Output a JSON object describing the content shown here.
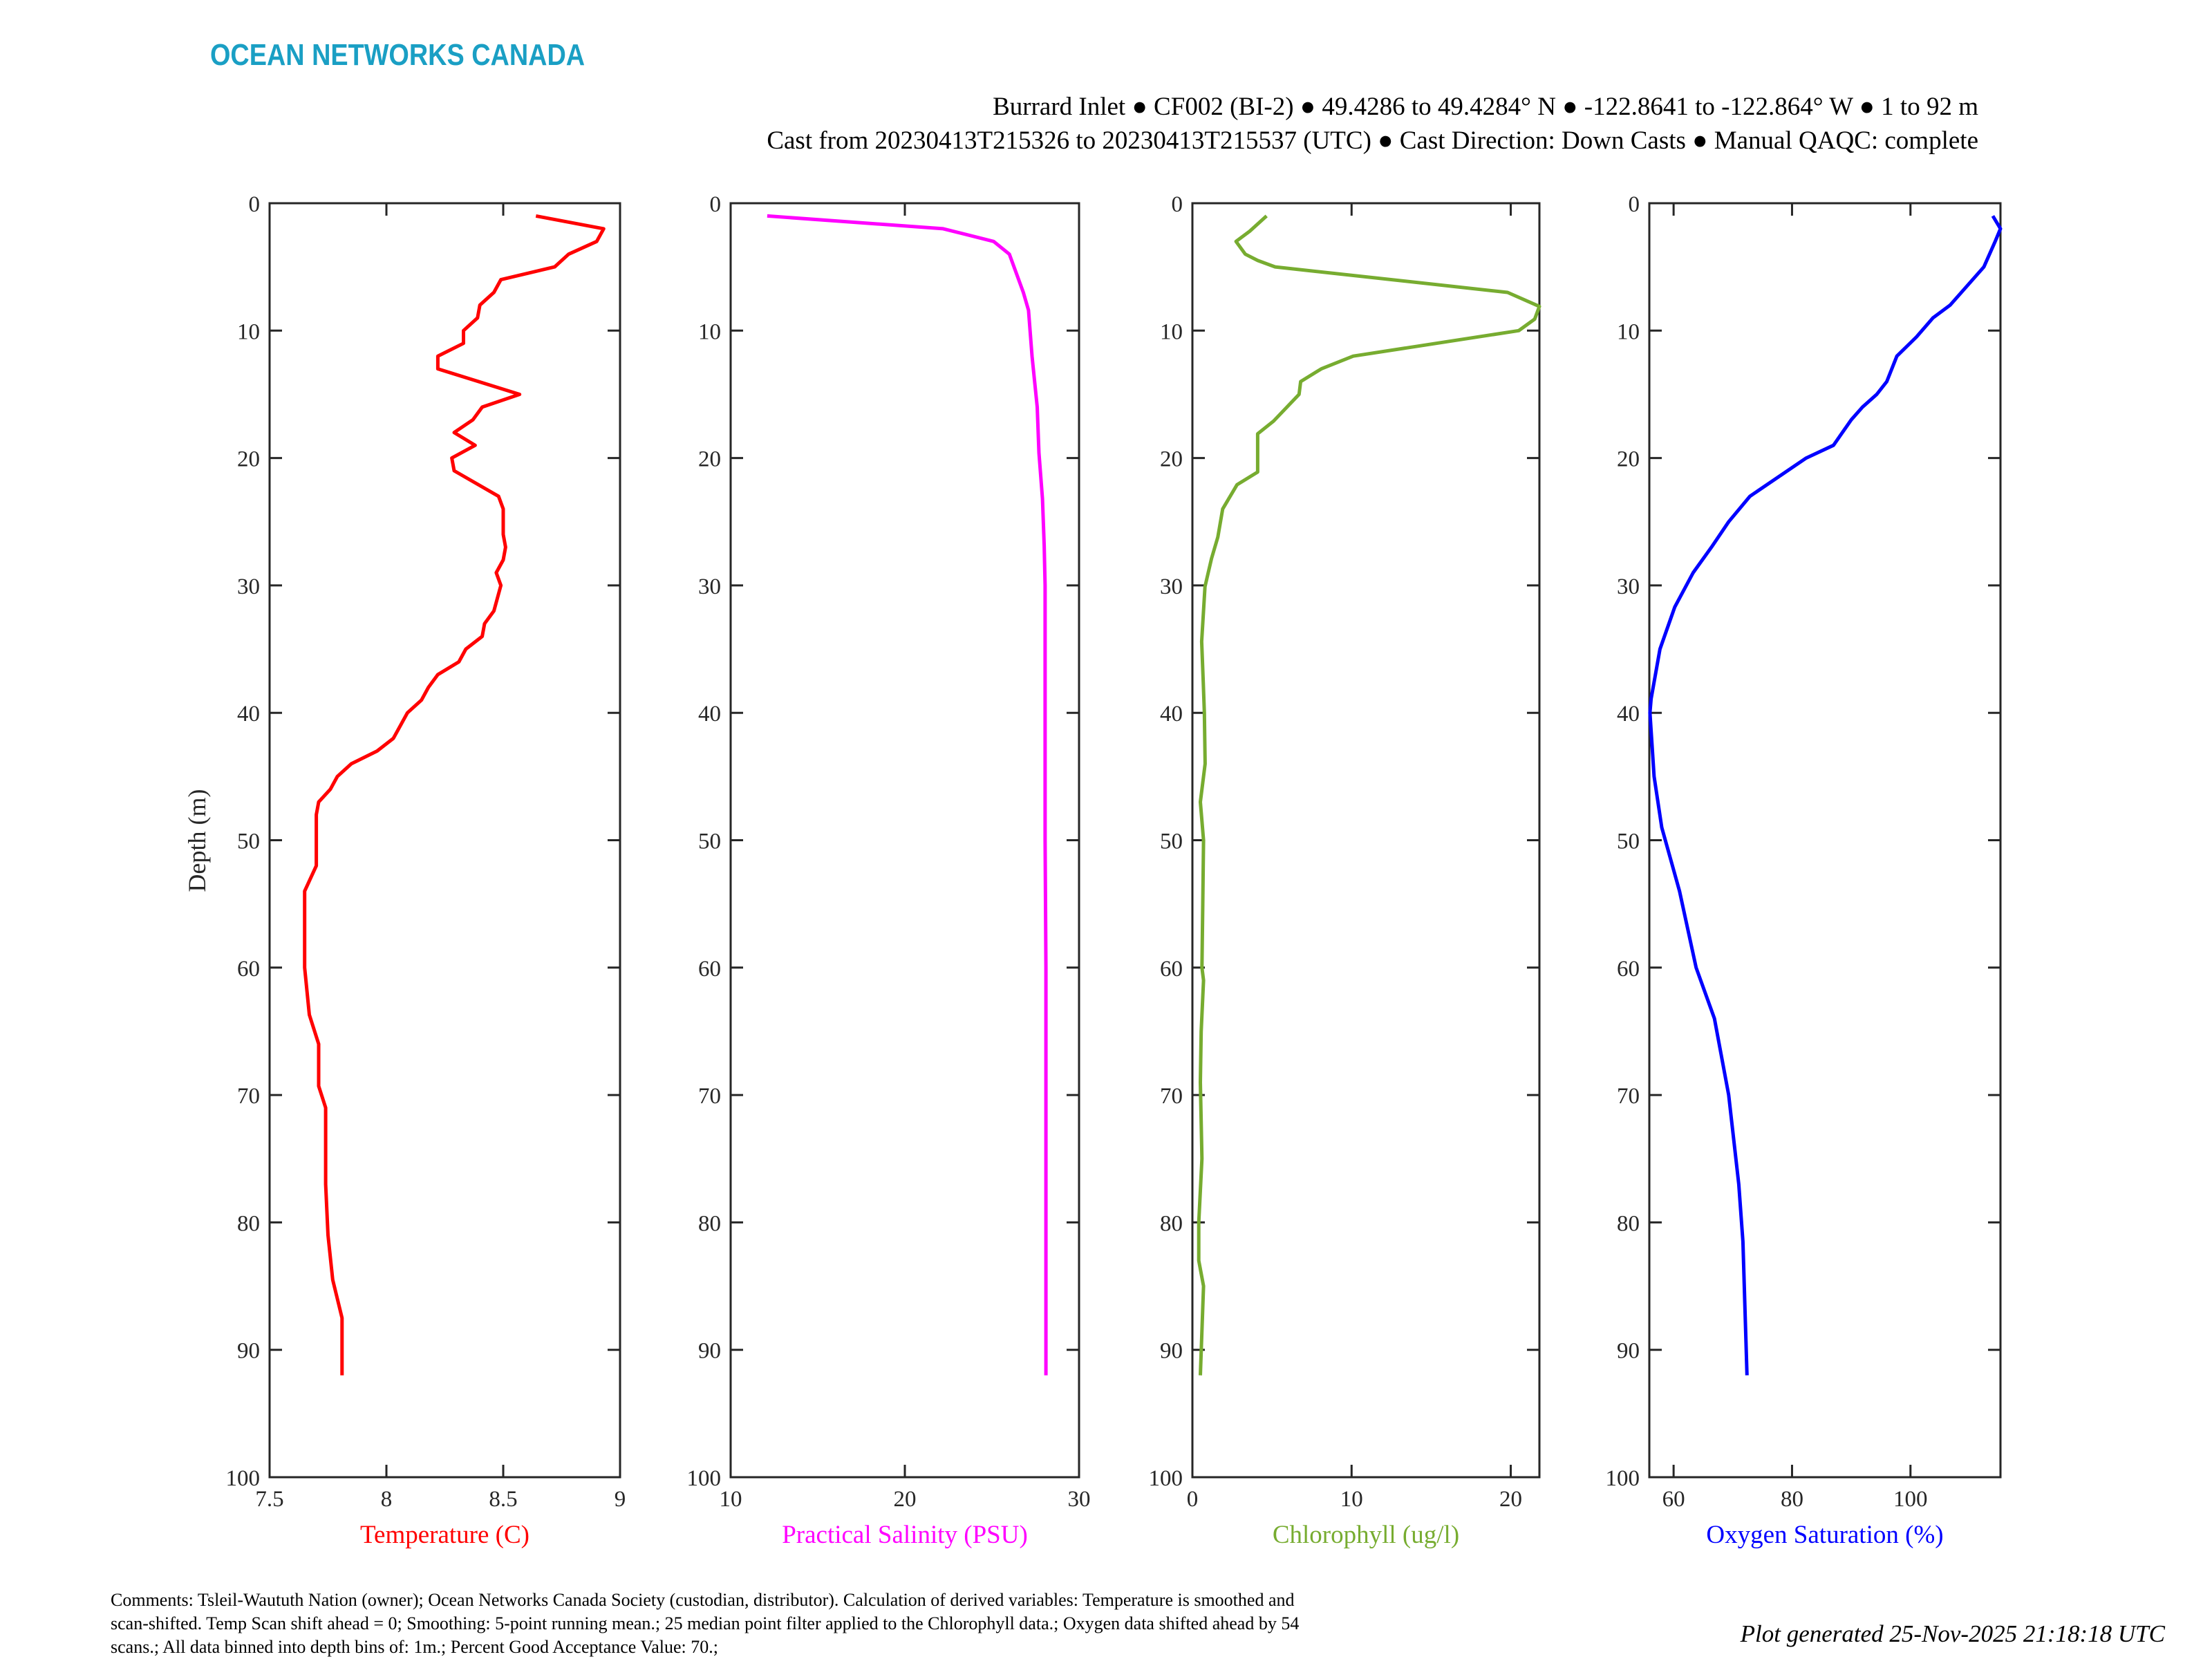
{
  "header": {
    "logo": "OCEAN NETWORKS CANADA",
    "logo_color": "#1a9fc4",
    "title_line1": "Burrard Inlet ● CF002 (BI-2) ● 49.4286 to 49.4284° N ● -122.8641 to -122.864° W ● 1 to 92 m",
    "title_line2": "Cast from 20230413T215326 to 20230413T215537 (UTC) ● Cast Direction: Down Casts ● Manual QAQC: complete"
  },
  "footer": {
    "comments": [
      "Comments: Tsleil-Waututh Nation (owner); Ocean Networks Canada Society (custodian, distributor). Calculation of derived variables: Temperature is smoothed and",
      "scan-shifted. Temp Scan shift ahead = 0; Smoothing: 5-point running mean.; 25 median point filter applied to the Chlorophyll data.; Oxygen data shifted ahead by 54",
      "scans.; All data binned into depth bins of: 1m.; Percent Good Acceptance Value: 70.;"
    ],
    "generated": "Plot generated 25-Nov-2025 21:18:18 UTC"
  },
  "chart_data": [
    {
      "type": "line",
      "name": "temperature",
      "xlabel": "Temperature (C)",
      "ylabel": "Depth (m)",
      "color": "#ff0000",
      "xlim": [
        7.5,
        9
      ],
      "xticks": [
        7.5,
        8,
        8.5,
        9
      ],
      "xtick_labels": [
        "7.5",
        "8",
        "8.5",
        "9"
      ],
      "ylim": [
        0,
        100
      ],
      "yticks": [
        0,
        10,
        20,
        30,
        40,
        50,
        60,
        70,
        80,
        90,
        100
      ],
      "y_reversed": true,
      "x": [
        8.64,
        8.93,
        8.9,
        8.78,
        8.72,
        8.49,
        8.46,
        8.4,
        8.39,
        8.33,
        8.33,
        8.22,
        8.22,
        8.57,
        8.41,
        8.37,
        8.29,
        8.38,
        8.28,
        8.29,
        8.48,
        8.5,
        8.5,
        8.51,
        8.5,
        8.47,
        8.49,
        8.46,
        8.42,
        8.41,
        8.34,
        8.31,
        8.22,
        8.18,
        8.15,
        8.09,
        8.06,
        8.03,
        7.96,
        7.85,
        7.79,
        7.76,
        7.71,
        7.7,
        7.7,
        7.7,
        7.65,
        7.65,
        7.67,
        7.71,
        7.71,
        7.74,
        7.74,
        7.75,
        7.77,
        7.81,
        7.81
      ],
      "y": [
        1,
        2,
        3,
        4,
        5,
        6,
        7,
        8,
        9,
        10,
        11,
        12,
        13,
        15,
        16,
        17,
        18,
        19,
        20,
        21,
        23,
        24,
        26,
        27,
        28,
        29,
        30,
        32,
        33,
        34,
        35,
        36,
        37,
        38,
        39,
        40,
        41,
        42,
        43,
        44,
        45,
        46,
        47,
        48,
        51,
        52,
        54,
        60,
        63.7,
        66,
        69.3,
        71,
        77,
        81,
        84.5,
        87.5,
        92
      ]
    },
    {
      "type": "line",
      "name": "salinity",
      "xlabel": "Practical Salinity (PSU)",
      "color": "#ff00ff",
      "xlim": [
        10,
        30
      ],
      "xticks": [
        10,
        20,
        30
      ],
      "xtick_labels": [
        "10",
        "20",
        "30"
      ],
      "ylim": [
        0,
        100
      ],
      "yticks": [
        0,
        10,
        20,
        30,
        40,
        50,
        60,
        70,
        80,
        90,
        100
      ],
      "y_reversed": true,
      "x": [
        12.1,
        22.2,
        25.1,
        26.0,
        26.8,
        27.1,
        27.3,
        27.6,
        27.7,
        27.9,
        28.0,
        28.05,
        28.05,
        28.05,
        28.1,
        28.1,
        28.1,
        28.1
      ],
      "y": [
        1,
        2,
        3,
        4,
        7,
        8.4,
        12,
        16,
        19.6,
        23.2,
        26.9,
        30,
        40,
        50,
        60,
        70,
        80,
        92
      ]
    },
    {
      "type": "line",
      "name": "chlorophyll",
      "xlabel": "Chlorophyll (ug/l)",
      "color": "#77ac30",
      "xlim": [
        0,
        21.8
      ],
      "xticks": [
        0,
        10,
        20
      ],
      "xtick_labels": [
        "0",
        "10",
        "20"
      ],
      "ylim": [
        0,
        100
      ],
      "yticks": [
        0,
        10,
        20,
        30,
        40,
        50,
        60,
        70,
        80,
        90,
        100
      ],
      "y_reversed": true,
      "x": [
        4.66,
        3.6,
        2.74,
        3.32,
        4.11,
        5.2,
        19.8,
        21.8,
        21.5,
        20.5,
        10.1,
        8.1,
        6.8,
        6.7,
        5.1,
        4.1,
        4.1,
        2.8,
        1.9,
        1.6,
        1.2,
        0.79,
        0.58,
        0.68,
        0.75,
        0.8,
        0.5,
        0.7,
        0.65,
        0.6,
        0.7,
        0.55,
        0.5,
        0.6,
        0.4,
        0.4,
        0.7,
        0.5
      ],
      "y": [
        1,
        2.2,
        3,
        4,
        4.5,
        5,
        7,
        8.1,
        9.1,
        10,
        12,
        13,
        14,
        15,
        17.1,
        18.1,
        21.1,
        22.1,
        24,
        26.2,
        27.9,
        30.1,
        34.4,
        37.6,
        40,
        44,
        47,
        50,
        55,
        60,
        61,
        65,
        69,
        75,
        80,
        83,
        85,
        92
      ]
    },
    {
      "type": "line",
      "name": "oxygen",
      "xlabel": "Oxygen Saturation (%)",
      "color": "#0000ff",
      "xlim": [
        55.9,
        115.2
      ],
      "xticks": [
        60,
        80,
        100
      ],
      "xtick_labels": [
        "60",
        "80",
        "100"
      ],
      "ylim": [
        0,
        100
      ],
      "yticks": [
        0,
        10,
        20,
        30,
        40,
        50,
        60,
        70,
        80,
        90,
        100
      ],
      "y_reversed": true,
      "x": [
        113.9,
        115.2,
        114.3,
        112.4,
        106.7,
        103.8,
        101,
        97.7,
        96,
        94.3,
        91.9,
        90,
        87,
        82.4,
        72.9,
        69.3,
        66.4,
        63.3,
        60.2,
        57.7,
        56.2,
        56,
        56.7,
        58,
        61,
        63.8,
        66.9,
        69.3,
        71,
        71.7,
        72.4
      ],
      "y": [
        1,
        2,
        3,
        5,
        8,
        9,
        10.5,
        12,
        14,
        15,
        16,
        17,
        19,
        20,
        23,
        25,
        27,
        29,
        31.7,
        35,
        38.9,
        40,
        45,
        49,
        54,
        60,
        64,
        70,
        77,
        81.5,
        92
      ]
    }
  ]
}
